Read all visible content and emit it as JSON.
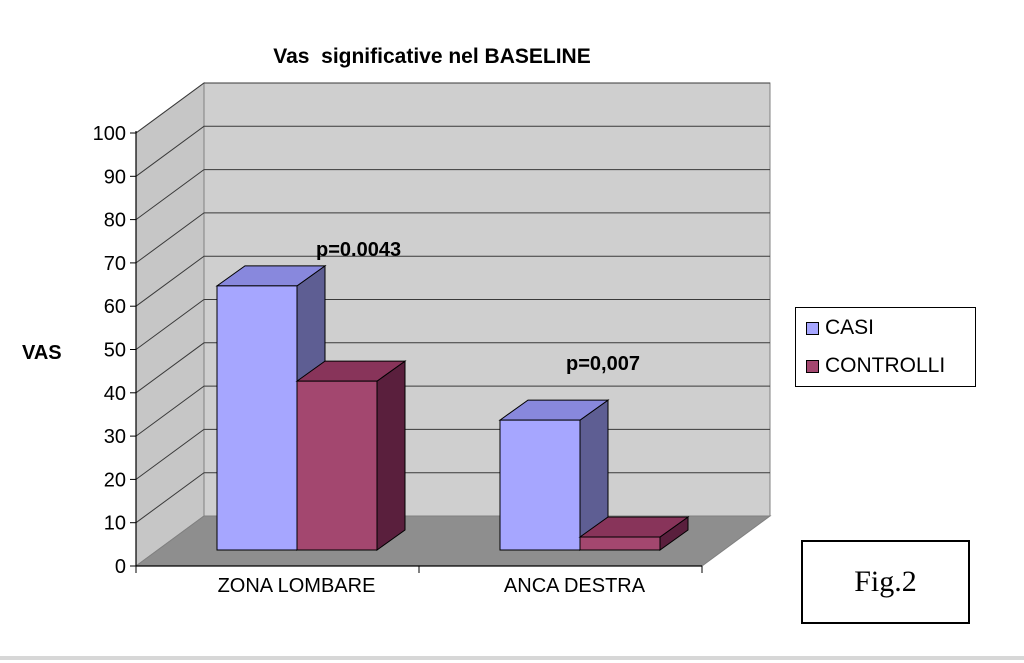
{
  "chart_data": {
    "type": "bar",
    "title": "Vas  significative nel BASELINE",
    "xlabel": "",
    "ylabel": "VAS",
    "ylim": [
      0,
      100
    ],
    "yticks": [
      "0",
      "10",
      "20",
      "30",
      "40",
      "50",
      "60",
      "70",
      "80",
      "90",
      "100"
    ],
    "categories": [
      "ZONA LOMBARE",
      "ANCA DESTRA"
    ],
    "series": [
      {
        "name": "CASI",
        "values": [
          61,
          30
        ],
        "color": "#a6a6ff"
      },
      {
        "name": "CONTROLLI",
        "values": [
          39,
          3
        ],
        "color": "#a3476f"
      }
    ],
    "annotations": [
      "p=0.0043",
      "p=0,007"
    ],
    "legend_position": "right",
    "grid": true,
    "style": "3d"
  },
  "figure_label": "Fig.2",
  "colors": {
    "casi_front": "#a6a6ff",
    "casi_top": "#8888dd",
    "casi_side": "#5e5e93",
    "controlli_front": "#a3476f",
    "controlli_top": "#88345a",
    "controlli_side": "#5a1f3d",
    "back_wall": "#cfcfcf",
    "side_wall": "#c6c6c6",
    "floor": "#8e8e8e"
  }
}
